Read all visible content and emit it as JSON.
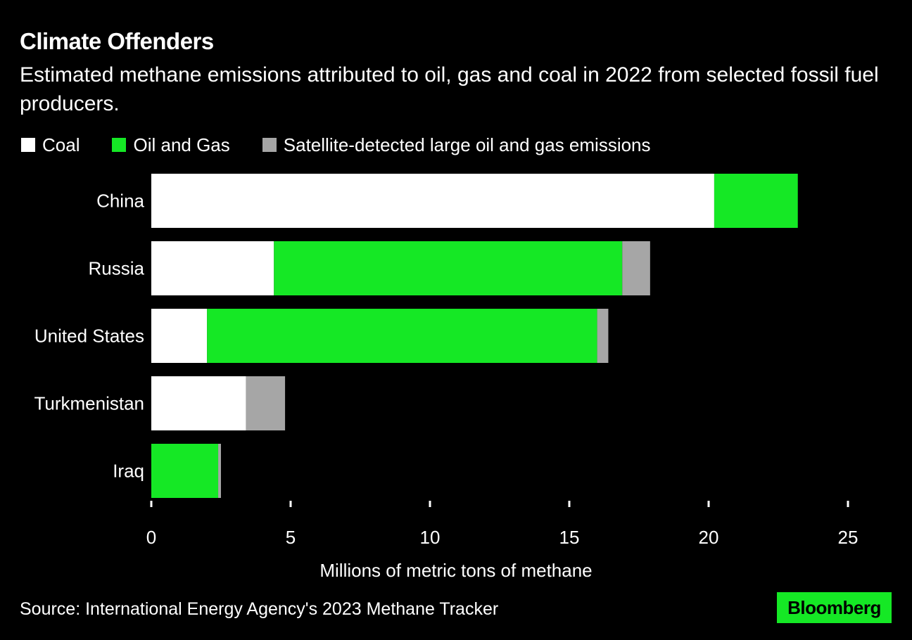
{
  "colors": {
    "background": "#000000",
    "text": "#ffffff",
    "coal": "#ffffff",
    "oil_gas": "#15e825",
    "satellite": "#a6a6a6",
    "brand": "#15e825"
  },
  "header": {
    "title": "Climate Offenders",
    "subtitle": "Estimated methane emissions attributed to oil, gas and coal in 2022 from selected fossil fuel producers."
  },
  "footer": {
    "source": "Source: International Energy Agency's 2023 Methane Tracker",
    "logo_text": "Bloomberg"
  },
  "chart_data": {
    "type": "bar",
    "orientation": "horizontal",
    "stacked": true,
    "categories": [
      "China",
      "Russia",
      "United States",
      "Turkmenistan",
      "Iraq"
    ],
    "series": [
      {
        "name": "Coal",
        "color": "#ffffff",
        "values": [
          20.2,
          4.4,
          2.0,
          3.4,
          0.0
        ]
      },
      {
        "name": "Oil and Gas",
        "color": "#15e825",
        "values": [
          3.0,
          12.5,
          14.0,
          0.0,
          2.4
        ]
      },
      {
        "name": "Satellite-detected large oil and gas emissions",
        "color": "#a6a6a6",
        "values": [
          0.0,
          1.0,
          0.4,
          1.4,
          0.1
        ]
      }
    ],
    "xlabel": "Millions of metric tons of methane",
    "xlim": [
      0,
      25
    ],
    "xticks": [
      0,
      5,
      10,
      15,
      20,
      25
    ],
    "grid": false,
    "legend_position": "top-left"
  }
}
